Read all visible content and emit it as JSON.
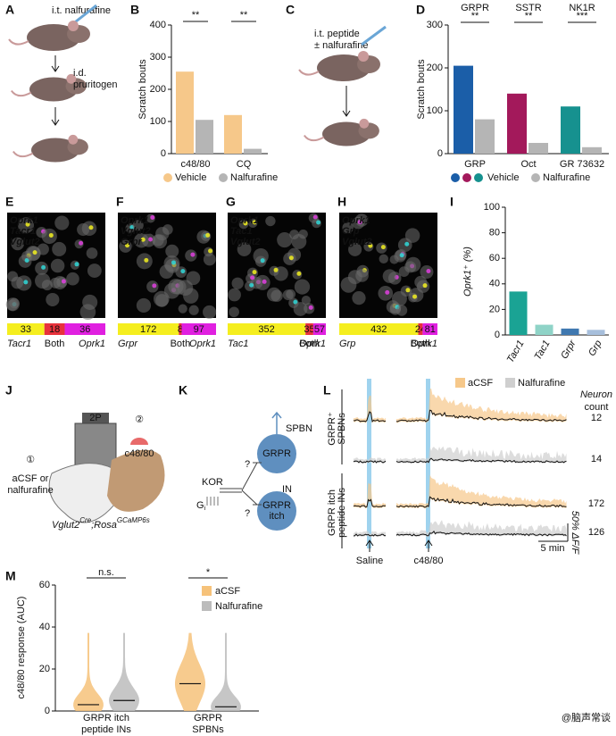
{
  "watermark": "@脑声常谈",
  "a": {
    "letter": "A",
    "injection": "i.t. nalfurafine",
    "pruritogen": [
      "i.d.",
      "pruritogen"
    ]
  },
  "b": {
    "letter": "B",
    "y_label": "Scratch bouts",
    "ylim": [
      0,
      400
    ],
    "yticks": [
      0,
      100,
      200,
      300,
      400
    ],
    "categories": [
      "c48/80",
      "CQ"
    ],
    "significance": [
      "**",
      "**"
    ],
    "series": [
      {
        "name": "Vehicle",
        "color": "#f6c88a",
        "values": [
          255,
          120
        ]
      },
      {
        "name": "Nalfurafine",
        "color": "#b5b5b5",
        "values": [
          105,
          15
        ]
      }
    ]
  },
  "c": {
    "letter": "C",
    "lines": [
      "i.t. peptide",
      "± nalfurafine"
    ]
  },
  "d": {
    "letter": "D",
    "y_label": "Scratch bouts",
    "ylim": [
      0,
      300
    ],
    "yticks": [
      0,
      100,
      200,
      300
    ],
    "groups": [
      {
        "receptor": "GRPR",
        "peptide": "GRP",
        "significance": "**",
        "color": "#1b5ea8",
        "values": [
          205,
          80
        ]
      },
      {
        "receptor": "SSTR",
        "peptide": "Oct",
        "significance": "**",
        "color": "#a3195b",
        "values": [
          140,
          25
        ]
      },
      {
        "receptor": "NK1R",
        "peptide": "GR 73632",
        "significance": "***",
        "color": "#16918f",
        "values": [
          110,
          15
        ]
      }
    ],
    "vehicle_label": "Vehicle",
    "nalfurafine_label": "Nalfurafine",
    "nalfurafine_color": "#b5b5b5"
  },
  "images": [
    {
      "letter": "E",
      "genes": [
        {
          "name": "Oprk1",
          "color": "#e040e0"
        },
        {
          "name": "Tacr1",
          "color": "#f2f020"
        },
        {
          "name": "Vglut2",
          "color": "#30d8d8"
        }
      ],
      "counts": [
        33,
        18,
        36
      ],
      "count_labels": [
        "Tacr1",
        "Both",
        "Oprk1"
      ]
    },
    {
      "letter": "F",
      "genes": [
        {
          "name": "Oprk1",
          "color": "#e040e0"
        },
        {
          "name": "Vglut2",
          "color": "#30d8d8"
        },
        {
          "name": "Grpr",
          "color": "#f2f020"
        }
      ],
      "counts": [
        172,
        8,
        97
      ],
      "count_labels": [
        "Grpr",
        "Both",
        "Oprk1"
      ]
    },
    {
      "letter": "G",
      "genes": [
        {
          "name": "Oprk1",
          "color": "#e040e0"
        },
        {
          "name": "Tac1",
          "color": "#f2f020"
        },
        {
          "name": "Vglut2",
          "color": "#30d8d8"
        }
      ],
      "counts": [
        352,
        35,
        57
      ],
      "count_labels": [
        "Tac1",
        "Both",
        "Oprk1"
      ]
    },
    {
      "letter": "H",
      "genes": [
        {
          "name": "Oprk1",
          "color": "#e040e0"
        },
        {
          "name": "Grp",
          "color": "#f2f020"
        },
        {
          "name": "Vglut2",
          "color": "#30d8d8"
        }
      ],
      "counts": [
        432,
        24,
        81
      ],
      "count_labels": [
        "Grp",
        "Both",
        "Oprk1"
      ]
    }
  ],
  "count_colors": [
    "#f5ee1f",
    "#e8323c",
    "#e020e0"
  ],
  "i": {
    "letter": "I",
    "y_label": "Oprk1⁺ (%)",
    "ylim": [
      0,
      100
    ],
    "yticks": [
      0,
      20,
      40,
      60,
      80,
      100
    ],
    "categories": [
      "Tacr1",
      "Tac1",
      "Grpr",
      "Grp"
    ],
    "values": [
      34,
      8,
      5,
      4
    ],
    "colors": [
      "#1aa394",
      "#8fd3c7",
      "#3f78b0",
      "#a7bfdc"
    ]
  },
  "j": {
    "letter": "J",
    "scope": "2P",
    "step1": "①",
    "step2": "②",
    "treatment": [
      "aCSF or",
      "nalfurafine"
    ],
    "pruritogen": "c48/80",
    "genotype": {
      "base1": "Vglut2",
      "sup1": "Cre",
      "sep": ";",
      "base2": "Rosa",
      "sup2": "GCaMP6s"
    }
  },
  "k": {
    "letter": "K",
    "kor": "KOR",
    "gi": "G",
    "gi_sub": "i",
    "q": [
      "?",
      "?"
    ],
    "spbn": "SPBN",
    "in": "IN",
    "top_node": "GRPR",
    "bottom_node": [
      "GRPR",
      "itch"
    ]
  },
  "l": {
    "letter": "L",
    "legend": [
      {
        "name": "aCSF",
        "color": "#f6c88a"
      },
      {
        "name": "Nalfurafine",
        "color": "#cfcfcf"
      }
    ],
    "count_title": [
      "Neuron",
      "count"
    ],
    "groups": [
      {
        "label": [
          "GRPR⁺",
          "SPBNs"
        ]
      },
      {
        "label": [
          "GRPR itch",
          "peptide INs"
        ]
      }
    ],
    "counts": [
      12,
      14,
      172,
      126
    ],
    "events": [
      "Saline",
      "c48/80"
    ],
    "scale_time": "5 min",
    "scale_df": "50% ΔF/F"
  },
  "m": {
    "letter": "M",
    "y_label": "c48/80 response (AUC)",
    "ylim": [
      0,
      60
    ],
    "yticks": [
      0,
      20,
      40,
      60
    ],
    "categories": [
      [
        "GRPR itch",
        "peptide INs"
      ],
      [
        "GRPR",
        "SPBNs"
      ]
    ],
    "significance": [
      "n.s.",
      "*"
    ],
    "series": [
      {
        "name": "aCSF",
        "color": "#f6c27a",
        "medians": [
          3,
          13
        ]
      },
      {
        "name": "Nalfurafine",
        "color": "#bcbcbc",
        "medians": [
          5,
          2
        ]
      }
    ]
  }
}
